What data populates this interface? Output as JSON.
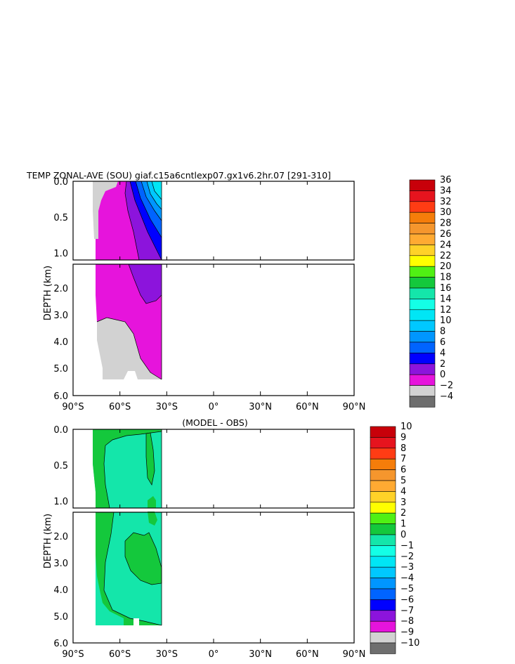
{
  "chart_data": [
    {
      "type": "heatmap",
      "title": "TEMP ZONAL-AVE (SOU) giaf.c15a6cntlexp07.gx1v6.2hr.07 [291-310]",
      "xlabel": "",
      "ylabel": "DEPTH (km)",
      "xlim": [
        -90,
        90
      ],
      "x_ticks": [
        "90°S",
        "60°S",
        "30°S",
        "0°",
        "30°N",
        "60°N",
        "90°N"
      ],
      "upper_panel": {
        "ylim": [
          0,
          1.1
        ],
        "y_ticks": [
          "0.0",
          "0.5",
          "1.0"
        ]
      },
      "lower_panel": {
        "ylim": [
          1.1,
          6.0
        ],
        "y_ticks": [
          "2.0",
          "3.0",
          "4.0",
          "5.0",
          "6.0"
        ]
      },
      "colorbar": {
        "levels": [
          "36",
          "34",
          "32",
          "30",
          "28",
          "26",
          "24",
          "22",
          "20",
          "18",
          "16",
          "14",
          "12",
          "10",
          "8",
          "6",
          "4",
          "2",
          "0",
          "−2",
          "−4"
        ],
        "colors": [
          "#c8000a",
          "#e6141e",
          "#ff3c14",
          "#f57d0a",
          "#f5962d",
          "#ffaa32",
          "#ffd228",
          "#ffff00",
          "#50f014",
          "#14c83c",
          "#14e6aa",
          "#14ffe6",
          "#00e6f5",
          "#00c8ff",
          "#0096ff",
          "#0064ff",
          "#0000ff",
          "#8c14dc",
          "#e614dc",
          "#d2d2d2",
          "#6e6e6e"
        ]
      },
      "fields": [
        "gray below 0°C along the Antarctic shelf and abyss",
        "magenta 0–2°C in deep water",
        "purple 2–4°C wedge near 45°S",
        "blue to light blue 4–14°C in the upper ocean near 30°S"
      ]
    },
    {
      "type": "heatmap",
      "title": "(MODEL - OBS)",
      "xlabel": "",
      "ylabel": "DEPTH (km)",
      "xlim": [
        -90,
        90
      ],
      "x_ticks": [
        "90°S",
        "60°S",
        "30°S",
        "0°",
        "30°N",
        "60°N",
        "90°N"
      ],
      "upper_panel": {
        "ylim": [
          0,
          1.1
        ],
        "y_ticks": [
          "0.0",
          "0.5",
          "1.0"
        ]
      },
      "lower_panel": {
        "ylim": [
          1.1,
          6.0
        ],
        "y_ticks": [
          "2.0",
          "3.0",
          "4.0",
          "5.0",
          "6.0"
        ]
      },
      "colorbar": {
        "levels": [
          "10",
          "9",
          "8",
          "7",
          "6",
          "5",
          "4",
          "3",
          "2",
          "1",
          "0",
          "−1",
          "−2",
          "−3",
          "−4",
          "−5",
          "−6",
          "−7",
          "−8",
          "−9",
          "−10"
        ],
        "colors": [
          "#c8000a",
          "#e6141e",
          "#ff3c14",
          "#f57d0a",
          "#f5962d",
          "#ffaa32",
          "#ffd228",
          "#ffff00",
          "#50f014",
          "#14c83c",
          "#14e6aa",
          "#14ffe6",
          "#00e6f5",
          "#00c8ff",
          "#0096ff",
          "#0064ff",
          "#0000ff",
          "#8c14dc",
          "#e614dc",
          "#d2d2d2",
          "#6e6e6e"
        ]
      },
      "fields": [
        "green 0–1 near the Antarctic margin and in a deep patch near 45°S",
        "aqua 0 to −1 over most of the section"
      ]
    }
  ]
}
